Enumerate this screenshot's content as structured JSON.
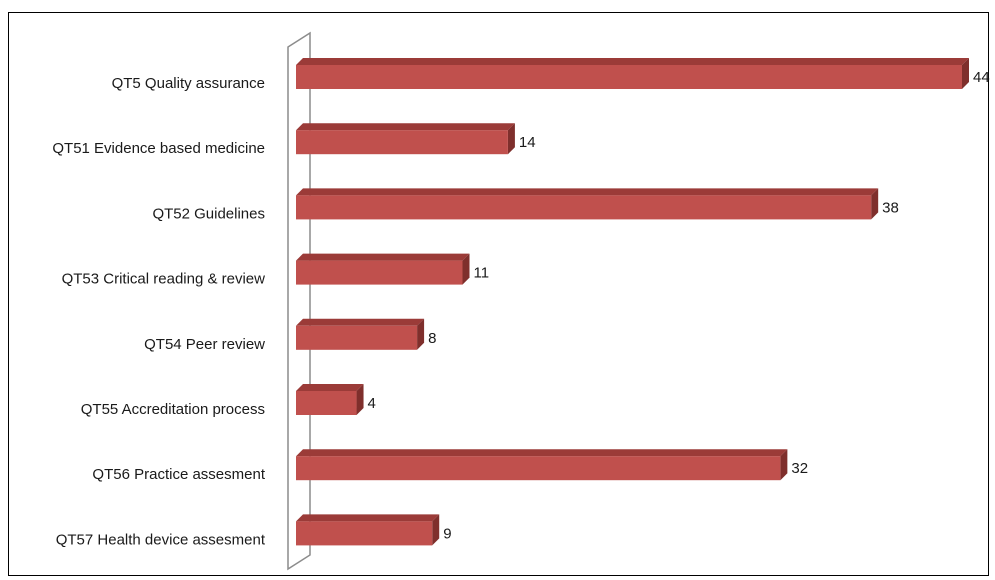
{
  "chart_data": {
    "type": "bar",
    "orientation": "horizontal",
    "style": "3d",
    "categories": [
      "QT5 Quality assurance",
      "QT51 Evidence based medicine",
      "QT52  Guidelines",
      "QT53 Critical reading & review",
      "QT54 Peer review",
      "QT55 Accreditation process",
      "QT56 Practice assesment",
      "QT57 Health device assesment"
    ],
    "values": [
      44,
      14,
      38,
      11,
      8,
      4,
      32,
      9
    ],
    "data_labels": [
      "44",
      "14",
      "38",
      "11",
      "8",
      "4",
      "32",
      "9"
    ],
    "xlim": [
      0,
      44
    ],
    "grid": false,
    "legend": "none",
    "colors": {
      "bar_front": "#c0504d",
      "bar_top": "#9b3b38",
      "bar_side": "#7f2f2c",
      "axis_wall": "#8c8c8c"
    }
  }
}
